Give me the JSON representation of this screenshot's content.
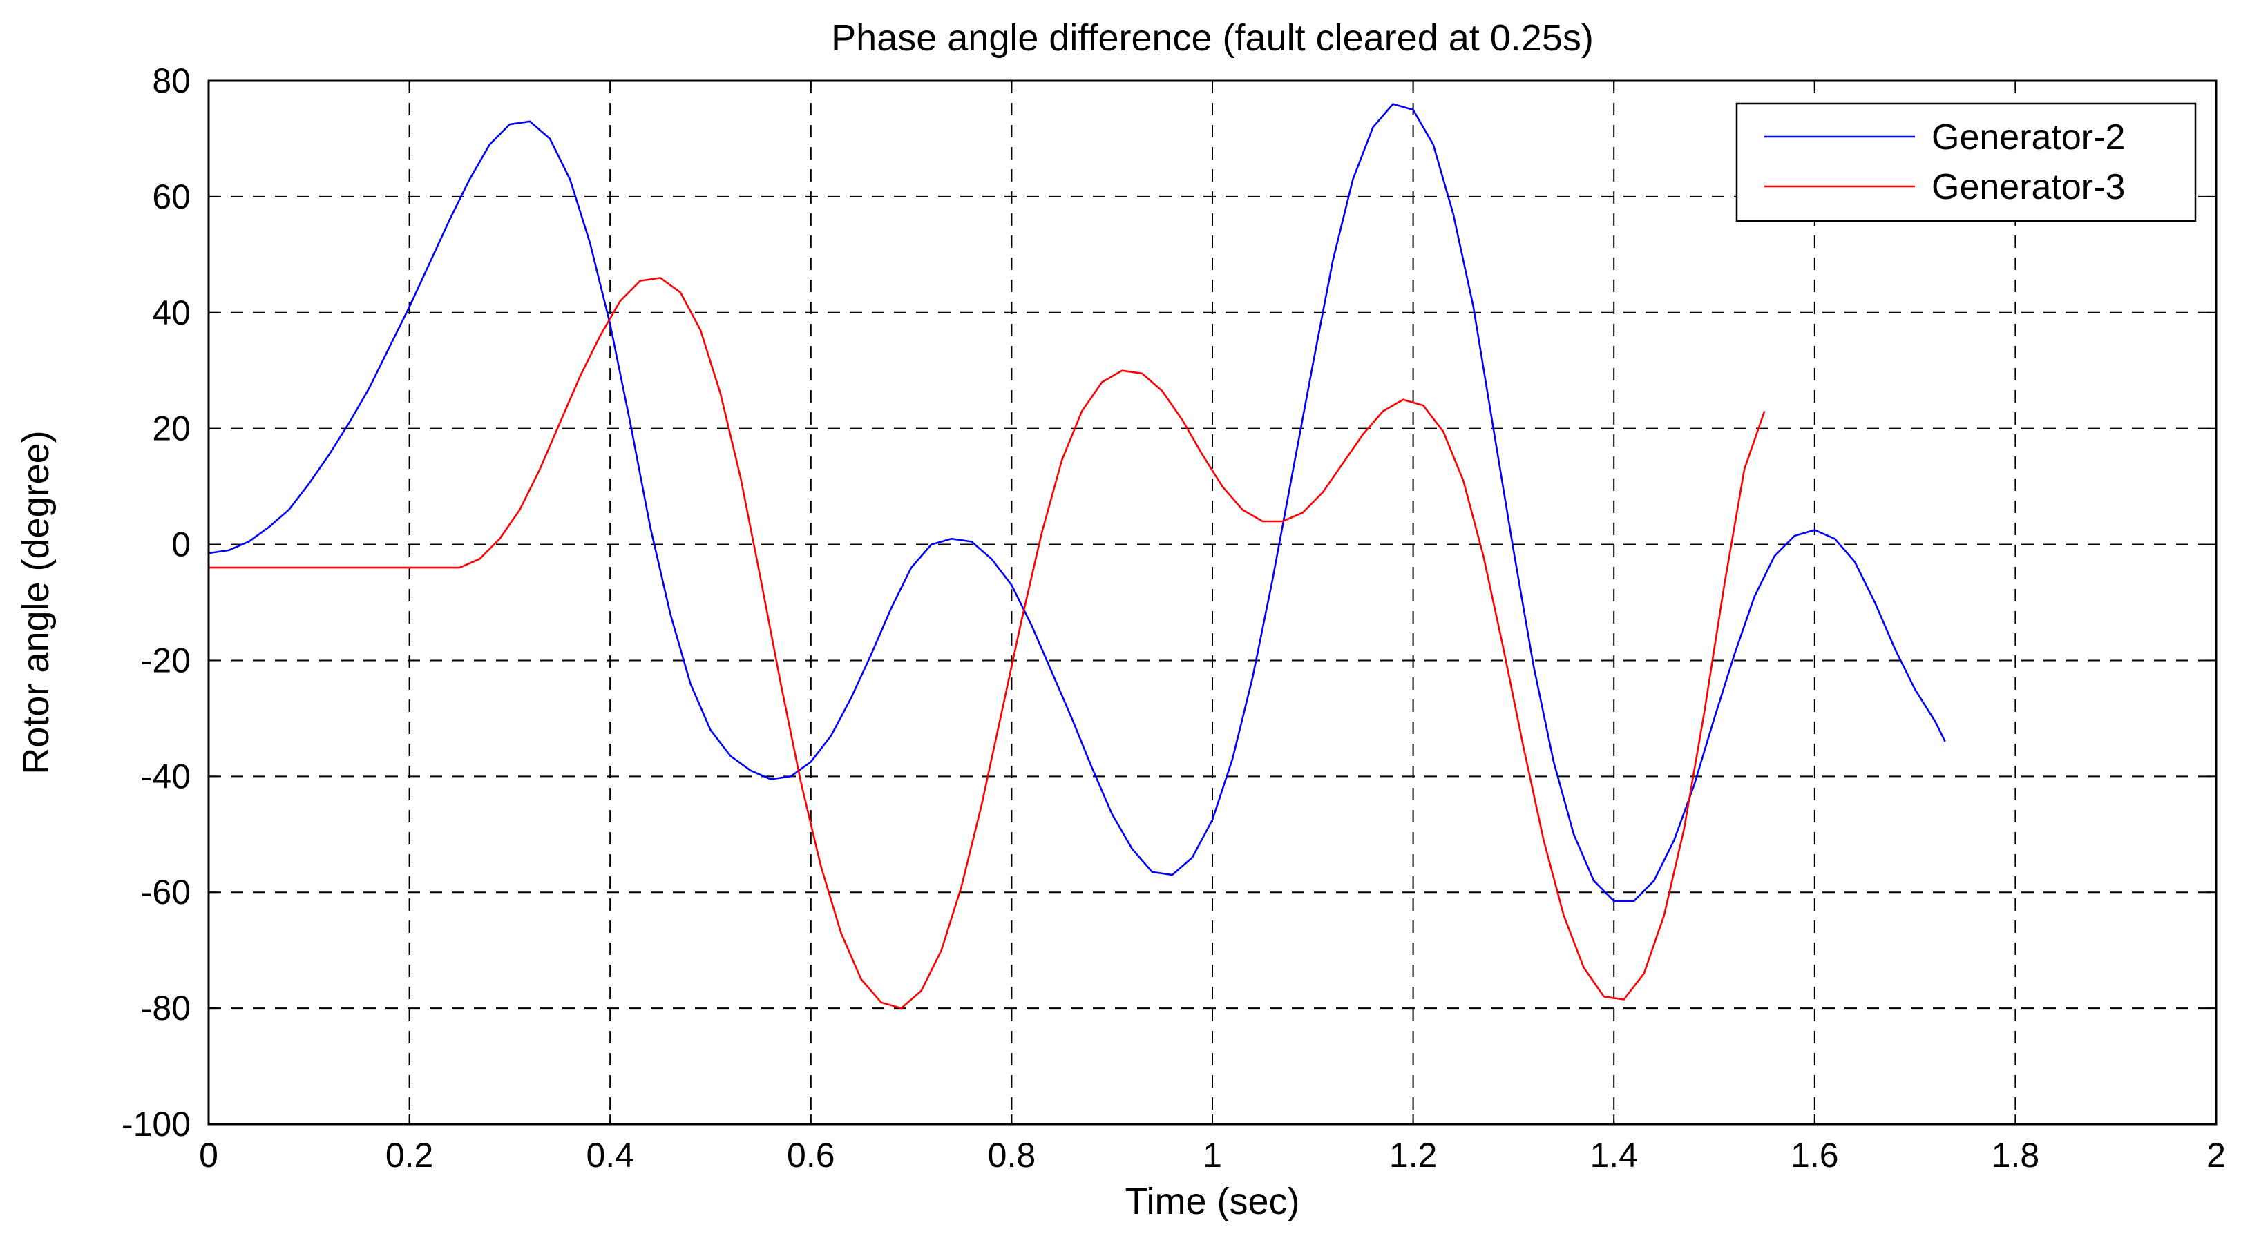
{
  "chart_data": {
    "type": "line",
    "title": "Phase angle difference (fault cleared at 0.25s)",
    "xlabel": "Time (sec)",
    "ylabel": "Rotor angle (degree)",
    "xlim": [
      0,
      2
    ],
    "ylim": [
      -100,
      80
    ],
    "xticks": [
      "0",
      "0.2",
      "0.4",
      "0.6",
      "0.8",
      "1",
      "1.2",
      "1.4",
      "1.6",
      "1.8",
      "2"
    ],
    "yticks": [
      "80",
      "60",
      "40",
      "20",
      "0",
      "-20",
      "-40",
      "-60",
      "-80",
      "-100"
    ],
    "grid": true,
    "legend_position": "top-right",
    "series": [
      {
        "name": "Generator-2",
        "color": "#0000ff",
        "points": [
          [
            0.0,
            -1.5
          ],
          [
            0.02,
            -1
          ],
          [
            0.04,
            0.5
          ],
          [
            0.06,
            3
          ],
          [
            0.08,
            6
          ],
          [
            0.1,
            10.5
          ],
          [
            0.12,
            15.5
          ],
          [
            0.14,
            21
          ],
          [
            0.16,
            27
          ],
          [
            0.18,
            34
          ],
          [
            0.2,
            41
          ],
          [
            0.22,
            48.5
          ],
          [
            0.24,
            56
          ],
          [
            0.26,
            63
          ],
          [
            0.28,
            69
          ],
          [
            0.3,
            72.5
          ],
          [
            0.32,
            73
          ],
          [
            0.34,
            70
          ],
          [
            0.36,
            63
          ],
          [
            0.38,
            52
          ],
          [
            0.4,
            38
          ],
          [
            0.42,
            21
          ],
          [
            0.44,
            3
          ],
          [
            0.46,
            -12
          ],
          [
            0.48,
            -24
          ],
          [
            0.5,
            -32
          ],
          [
            0.52,
            -36.5
          ],
          [
            0.54,
            -39
          ],
          [
            0.56,
            -40.5
          ],
          [
            0.58,
            -40
          ],
          [
            0.6,
            -37.5
          ],
          [
            0.62,
            -33
          ],
          [
            0.64,
            -26.5
          ],
          [
            0.66,
            -19
          ],
          [
            0.68,
            -11
          ],
          [
            0.7,
            -4
          ],
          [
            0.72,
            0
          ],
          [
            0.74,
            1
          ],
          [
            0.76,
            0.5
          ],
          [
            0.78,
            -2.5
          ],
          [
            0.8,
            -7
          ],
          [
            0.82,
            -14
          ],
          [
            0.84,
            -22
          ],
          [
            0.86,
            -30
          ],
          [
            0.88,
            -38.5
          ],
          [
            0.9,
            -46.5
          ],
          [
            0.92,
            -52.5
          ],
          [
            0.94,
            -56.5
          ],
          [
            0.96,
            -57
          ],
          [
            0.98,
            -54
          ],
          [
            1.0,
            -47.5
          ],
          [
            1.02,
            -37
          ],
          [
            1.04,
            -23
          ],
          [
            1.06,
            -6
          ],
          [
            1.08,
            12.5
          ],
          [
            1.1,
            31
          ],
          [
            1.12,
            49
          ],
          [
            1.14,
            63
          ],
          [
            1.16,
            72
          ],
          [
            1.18,
            76
          ],
          [
            1.2,
            75
          ],
          [
            1.22,
            69
          ],
          [
            1.24,
            57
          ],
          [
            1.26,
            41
          ],
          [
            1.28,
            20
          ],
          [
            1.3,
            -1
          ],
          [
            1.32,
            -21
          ],
          [
            1.34,
            -37.5
          ],
          [
            1.36,
            -50
          ],
          [
            1.38,
            -58
          ],
          [
            1.4,
            -61.5
          ],
          [
            1.42,
            -61.5
          ],
          [
            1.44,
            -58
          ],
          [
            1.46,
            -51
          ],
          [
            1.48,
            -41.5
          ],
          [
            1.5,
            -30
          ],
          [
            1.52,
            -19
          ],
          [
            1.54,
            -9
          ],
          [
            1.56,
            -2
          ],
          [
            1.58,
            1.5
          ],
          [
            1.6,
            2.5
          ],
          [
            1.62,
            1
          ],
          [
            1.64,
            -3
          ],
          [
            1.66,
            -10
          ],
          [
            1.68,
            -18
          ],
          [
            1.7,
            -25
          ],
          [
            1.72,
            -30.5
          ],
          [
            1.73,
            -34
          ]
        ]
      },
      {
        "name": "Generator-3",
        "color": "#ff0000",
        "points": [
          [
            0.0,
            -4
          ],
          [
            0.1,
            -4
          ],
          [
            0.2,
            -4
          ],
          [
            0.25,
            -4
          ],
          [
            0.27,
            -2.5
          ],
          [
            0.29,
            1
          ],
          [
            0.31,
            6
          ],
          [
            0.33,
            13
          ],
          [
            0.35,
            21
          ],
          [
            0.37,
            29
          ],
          [
            0.39,
            36
          ],
          [
            0.41,
            42
          ],
          [
            0.43,
            45.5
          ],
          [
            0.45,
            46
          ],
          [
            0.47,
            43.5
          ],
          [
            0.49,
            37
          ],
          [
            0.51,
            26
          ],
          [
            0.53,
            11.5
          ],
          [
            0.55,
            -6
          ],
          [
            0.57,
            -24
          ],
          [
            0.59,
            -41
          ],
          [
            0.61,
            -55.5
          ],
          [
            0.63,
            -67
          ],
          [
            0.65,
            -75
          ],
          [
            0.67,
            -79
          ],
          [
            0.69,
            -80
          ],
          [
            0.71,
            -77
          ],
          [
            0.73,
            -70
          ],
          [
            0.75,
            -59
          ],
          [
            0.77,
            -45
          ],
          [
            0.79,
            -29
          ],
          [
            0.81,
            -13
          ],
          [
            0.83,
            2
          ],
          [
            0.85,
            14.5
          ],
          [
            0.87,
            23
          ],
          [
            0.89,
            28
          ],
          [
            0.91,
            30
          ],
          [
            0.93,
            29.5
          ],
          [
            0.95,
            26.5
          ],
          [
            0.97,
            21.5
          ],
          [
            0.99,
            15.5
          ],
          [
            1.01,
            10
          ],
          [
            1.03,
            6
          ],
          [
            1.05,
            4
          ],
          [
            1.07,
            4
          ],
          [
            1.09,
            5.5
          ],
          [
            1.11,
            9
          ],
          [
            1.13,
            14
          ],
          [
            1.15,
            19
          ],
          [
            1.17,
            23
          ],
          [
            1.19,
            25
          ],
          [
            1.21,
            24
          ],
          [
            1.23,
            19.5
          ],
          [
            1.25,
            11
          ],
          [
            1.27,
            -2
          ],
          [
            1.29,
            -18
          ],
          [
            1.31,
            -35
          ],
          [
            1.33,
            -51
          ],
          [
            1.35,
            -64
          ],
          [
            1.37,
            -73
          ],
          [
            1.39,
            -78
          ],
          [
            1.41,
            -78.5
          ],
          [
            1.43,
            -74
          ],
          [
            1.45,
            -64
          ],
          [
            1.47,
            -49
          ],
          [
            1.49,
            -29
          ],
          [
            1.51,
            -7
          ],
          [
            1.53,
            13
          ],
          [
            1.55,
            23
          ]
        ]
      }
    ]
  }
}
